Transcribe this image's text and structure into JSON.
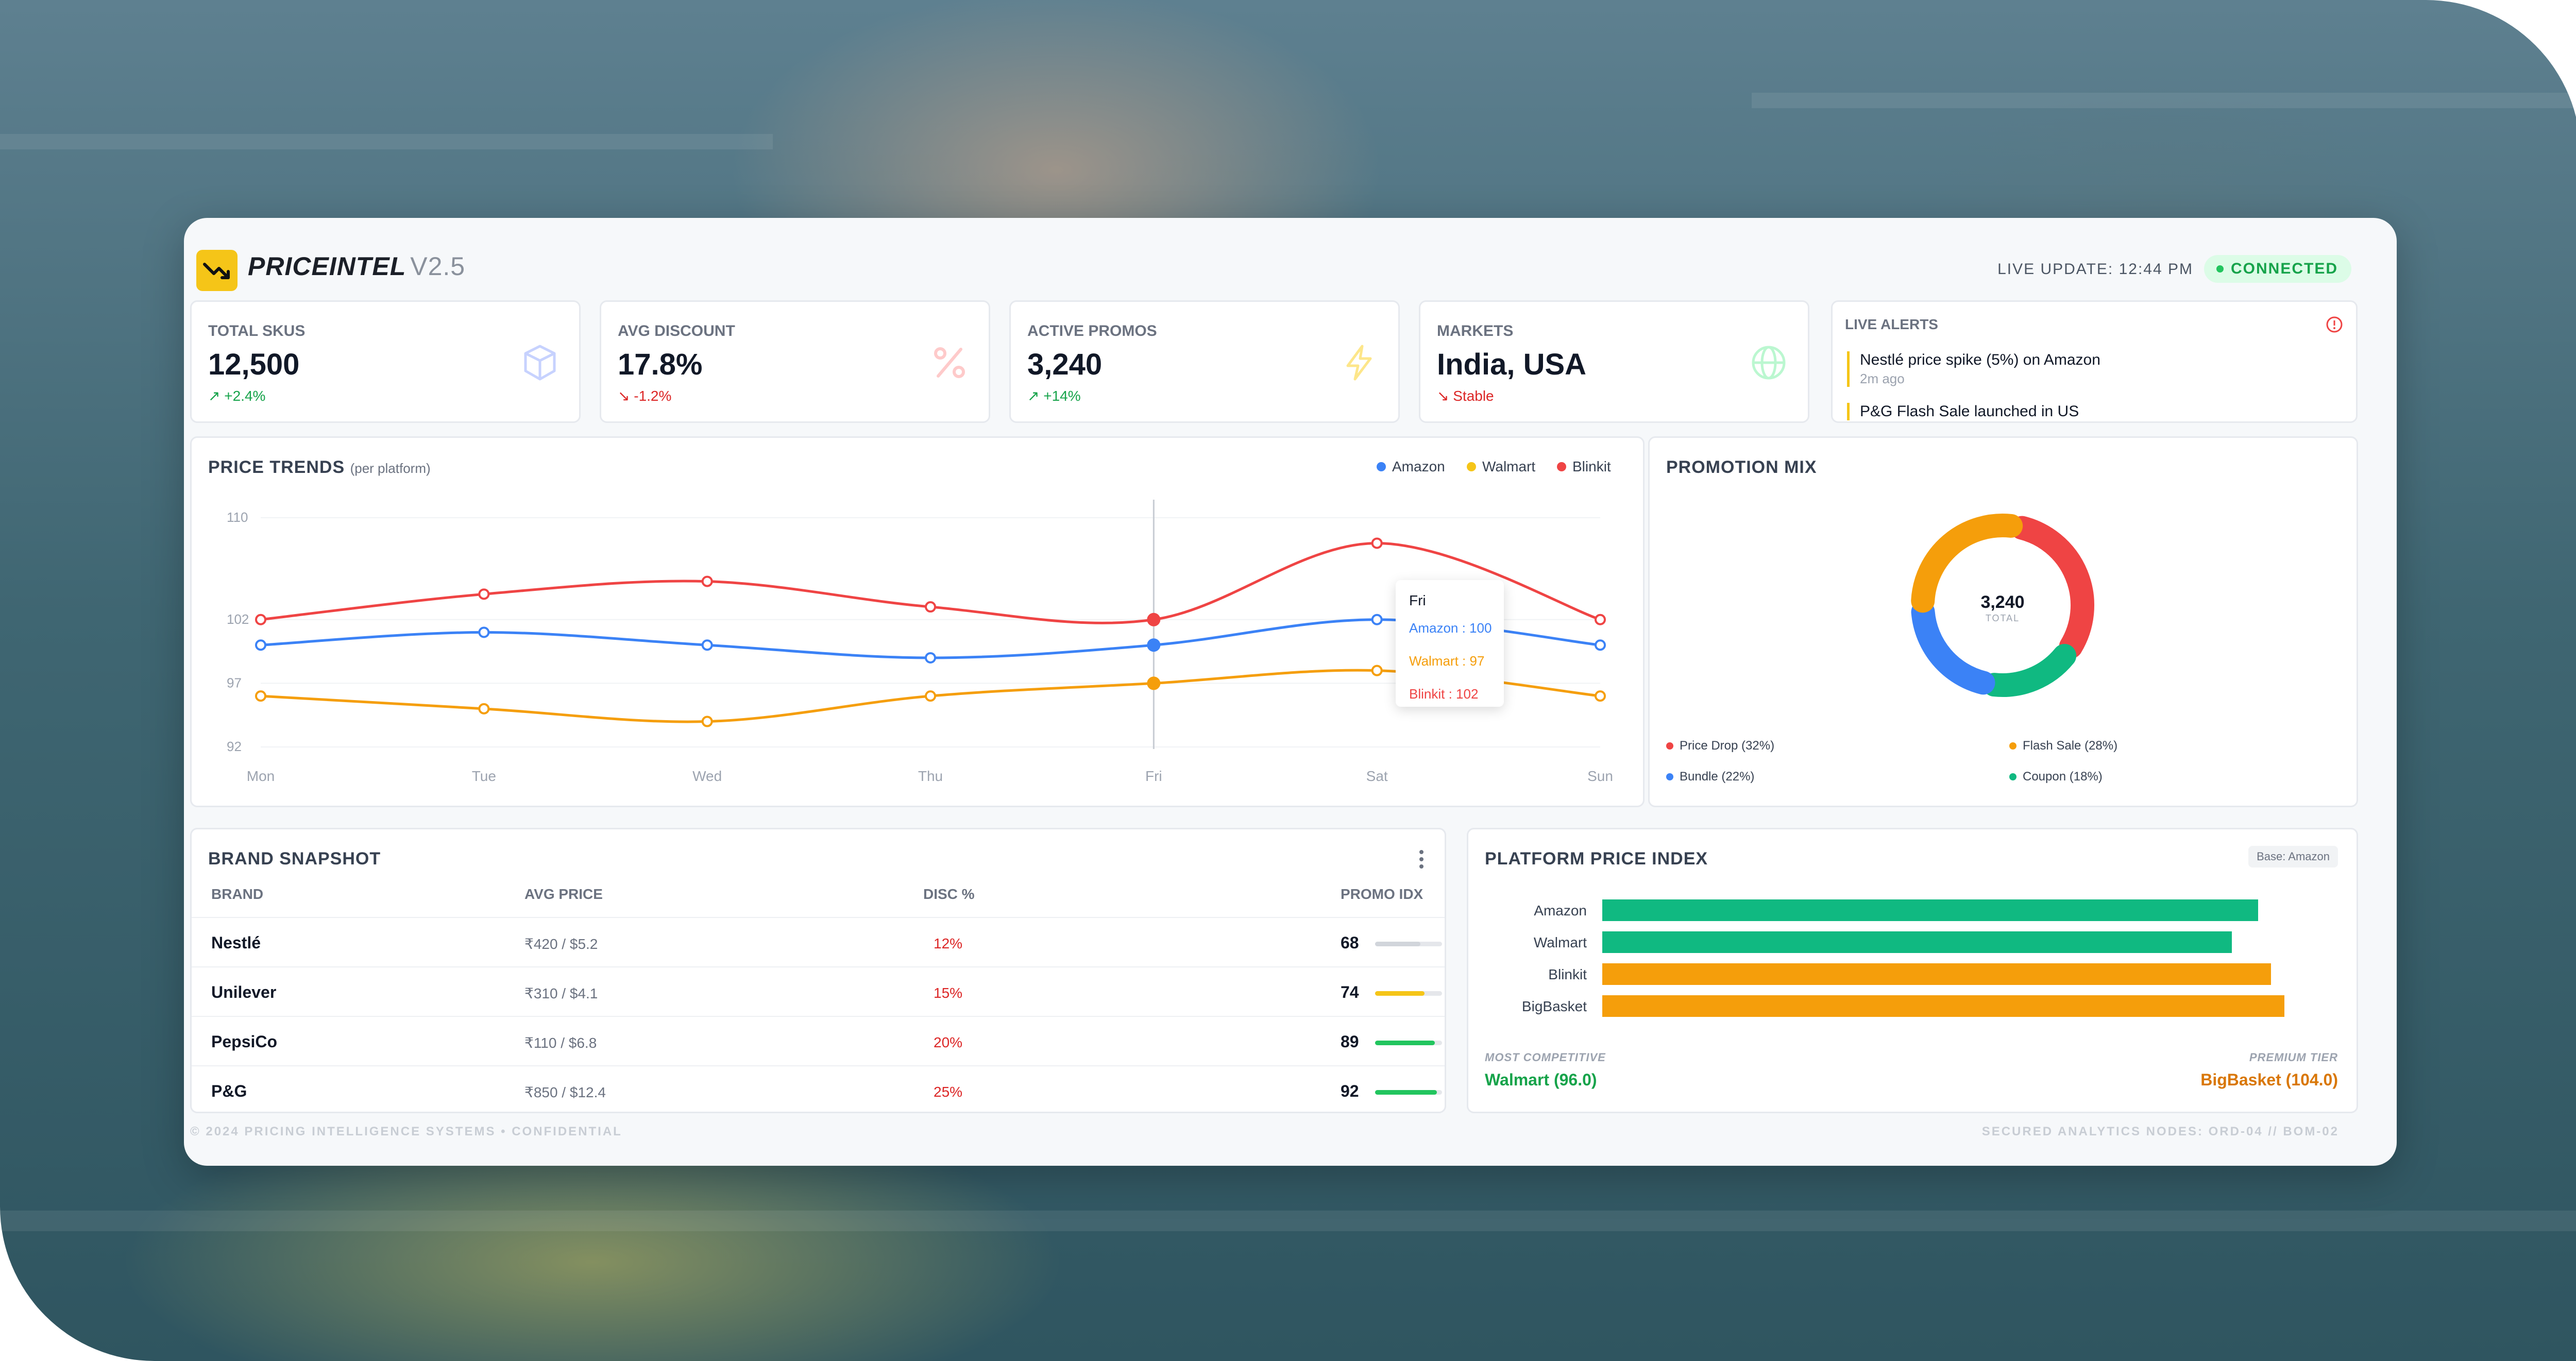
{
  "header": {
    "brand": "PRICEINTEL",
    "version": "V2.5",
    "live_update": "LIVE UPDATE: 12:44 PM",
    "status": "CONNECTED"
  },
  "kpis": [
    {
      "label": "TOTAL SKUS",
      "value": "12,500",
      "delta": "↗ +2.4%",
      "icon": "cube-icon",
      "trend": "up"
    },
    {
      "label": "AVG DISCOUNT",
      "value": "17.8%",
      "delta": "↘ -1.2%",
      "icon": "percent-icon",
      "trend": "down"
    },
    {
      "label": "ACTIVE PROMOS",
      "value": "3,240",
      "delta": "↗ +14%",
      "icon": "lightning-icon",
      "trend": "up"
    },
    {
      "label": "MARKETS",
      "value": "India, USA",
      "delta": "↘ Stable",
      "icon": "globe-icon",
      "trend": "down"
    }
  ],
  "alerts": {
    "title": "LIVE ALERTS",
    "items": [
      {
        "text": "Nestlé price spike (5%) on Amazon",
        "time": "2m ago"
      },
      {
        "text": "P&G Flash Sale launched in US",
        "time": ""
      }
    ]
  },
  "price_trends": {
    "title": "PRICE TRENDS",
    "subtitle": "(per platform)",
    "tooltip": {
      "day": "Fri",
      "lines": [
        "Amazon : 100",
        "Walmart : 97",
        "Blinkit : 102"
      ]
    }
  },
  "promotion_mix": {
    "title": "PROMOTION MIX",
    "center_value": "3,240",
    "center_label": "TOTAL",
    "legend": [
      "Price Drop (32%)",
      "Flash Sale (28%)",
      "Bundle (22%)",
      "Coupon (18%)"
    ]
  },
  "brand_snapshot": {
    "title": "BRAND SNAPSHOT",
    "columns": [
      "BRAND",
      "AVG PRICE",
      "DISC %",
      "PROMO IDX"
    ],
    "rows": [
      {
        "brand": "Nestlé",
        "price": "₹420 / $5.2",
        "disc": "12%",
        "idx": "68",
        "fill": 0.68,
        "color": "#d1d5db"
      },
      {
        "brand": "Unilever",
        "price": "₹310 / $4.1",
        "disc": "15%",
        "idx": "74",
        "fill": 0.74,
        "color": "#f5c518"
      },
      {
        "brand": "PepsiCo",
        "price": "₹110 / $6.8",
        "disc": "20%",
        "idx": "89",
        "fill": 0.89,
        "color": "#22c55e"
      },
      {
        "brand": "P&G",
        "price": "₹850 / $12.4",
        "disc": "25%",
        "idx": "92",
        "fill": 0.92,
        "color": "#22c55e"
      }
    ]
  },
  "platform_index": {
    "title": "PLATFORM PRICE INDEX",
    "badge": "Base: Amazon",
    "most_label": "MOST COMPETITIVE",
    "most_value": "Walmart (96.0)",
    "premium_label": "PREMIUM TIER",
    "premium_value": "BigBasket (104.0)"
  },
  "footer": {
    "left": "© 2024 PRICING INTELLIGENCE SYSTEMS • CONFIDENTIAL",
    "right": "SECURED ANALYTICS NODES: ORD-04 // BOM-02"
  },
  "chart_data": [
    {
      "type": "line",
      "x": [
        "Mon",
        "Tue",
        "Wed",
        "Thu",
        "Fri",
        "Sat",
        "Sun"
      ],
      "yticks": [
        "92",
        "97",
        "102",
        "110"
      ],
      "ylim": [
        92,
        110
      ],
      "series": [
        {
          "name": "Amazon",
          "color": "#3b82f6",
          "values": [
            100,
            101,
            100,
            99,
            100,
            102,
            100
          ]
        },
        {
          "name": "Walmart",
          "color": "#f59e0b",
          "values": [
            96,
            95,
            94,
            96,
            97,
            98,
            96
          ]
        },
        {
          "name": "Blinkit",
          "color": "#ef4444",
          "values": [
            102,
            104,
            105,
            103,
            102,
            108,
            102
          ]
        }
      ]
    },
    {
      "type": "pie",
      "series": [
        {
          "name": "Price Drop",
          "value": 32,
          "color": "#ef4444"
        },
        {
          "name": "Coupon",
          "value": 18,
          "color": "#10b981"
        },
        {
          "name": "Bundle",
          "value": 22,
          "color": "#3b82f6"
        },
        {
          "name": "Flash Sale",
          "value": 28,
          "color": "#f59e0b"
        }
      ]
    },
    {
      "type": "bar",
      "categories": [
        "Amazon",
        "Walmart",
        "Blinkit",
        "BigBasket"
      ],
      "values": [
        100,
        96,
        102,
        104
      ],
      "colors": [
        "#10b981",
        "#10b981",
        "#f59e0b",
        "#f59e0b"
      ],
      "xlim": [
        0,
        110
      ]
    }
  ]
}
